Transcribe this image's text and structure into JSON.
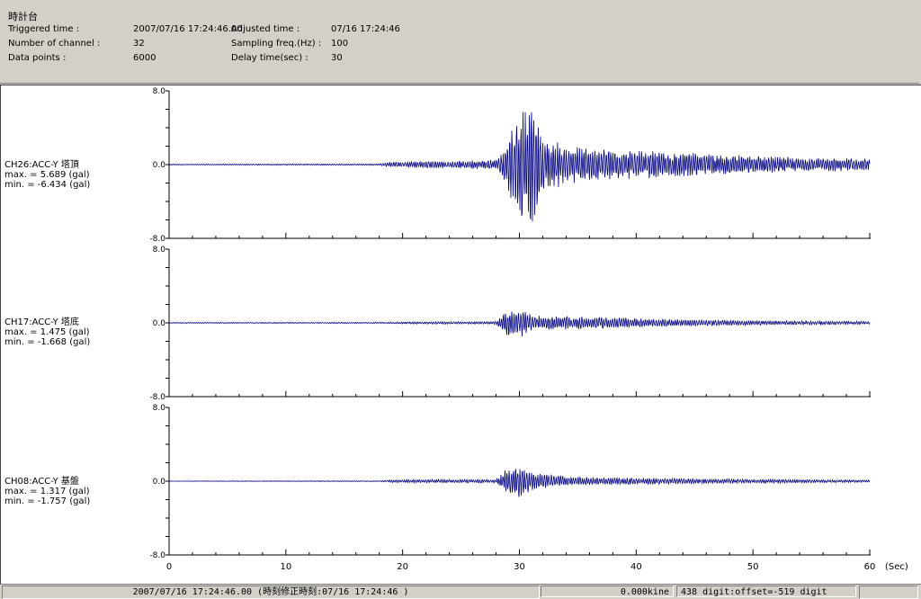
{
  "header": {
    "title": "時計台",
    "triggered_label": "Triggered time :",
    "triggered_value": "2007/07/16 17:24:46.00",
    "channels_label": "Number of channel :",
    "channels_value": "32",
    "datapoints_label": "Data points :",
    "datapoints_value": "6000",
    "adjusted_label": "Adjusted time :",
    "adjusted_value": "07/16 17:24:46",
    "sampling_label": "Sampling freq.(Hz) :",
    "sampling_value": "100",
    "delay_label": "Delay time(sec) :",
    "delay_value": "30"
  },
  "chart_data": {
    "type": "line",
    "x_unit": "(Sec)",
    "xlim": [
      0,
      60
    ],
    "x_ticks": [
      "0",
      "10",
      "20",
      "30",
      "40",
      "50",
      "60"
    ],
    "channels": [
      {
        "name": "CH26:ACC-Y 塔頂",
        "max_text": "max. = 5.689 (gal)",
        "min_text": "min. = -6.434 (gal)",
        "max": 5.689,
        "min": -6.434,
        "ylim": [
          -8.0,
          8.0
        ],
        "y_ticks": [
          "8.0",
          "0.0",
          "-8.0"
        ],
        "color": "#000080",
        "envelope": [
          [
            0,
            0.05
          ],
          [
            18,
            0.08
          ],
          [
            19,
            0.3
          ],
          [
            24,
            0.35
          ],
          [
            28,
            0.5
          ],
          [
            29,
            2.5
          ],
          [
            30,
            5.7
          ],
          [
            31,
            6.4
          ],
          [
            32,
            3.0
          ],
          [
            34,
            2.0
          ],
          [
            37,
            1.6
          ],
          [
            45,
            1.2
          ],
          [
            50,
            0.9
          ],
          [
            55,
            0.7
          ],
          [
            60,
            0.6
          ]
        ]
      },
      {
        "name": "CH17:ACC-Y 塔底",
        "max_text": "max. = 1.475 (gal)",
        "min_text": "min. = -1.668 (gal)",
        "max": 1.475,
        "min": -1.668,
        "ylim": [
          -8.0,
          8.0
        ],
        "y_ticks": [
          "8.0",
          "0.0",
          "-8.0"
        ],
        "color": "#000080",
        "envelope": [
          [
            0,
            0.05
          ],
          [
            18,
            0.06
          ],
          [
            20,
            0.1
          ],
          [
            28,
            0.15
          ],
          [
            29,
            1.5
          ],
          [
            30,
            1.6
          ],
          [
            31,
            0.9
          ],
          [
            33,
            0.7
          ],
          [
            37,
            0.6
          ],
          [
            42,
            0.4
          ],
          [
            50,
            0.25
          ],
          [
            60,
            0.15
          ]
        ]
      },
      {
        "name": "CH08:ACC-Y 基盤",
        "max_text": "max. = 1.317 (gal)",
        "min_text": "min. = -1.757 (gal)",
        "max": 1.317,
        "min": -1.757,
        "ylim": [
          -8.0,
          8.0
        ],
        "y_ticks": [
          "8.0",
          "0.0",
          "-8.0"
        ],
        "color": "#000080",
        "envelope": [
          [
            0,
            0.02
          ],
          [
            18,
            0.04
          ],
          [
            19,
            0.15
          ],
          [
            28,
            0.2
          ],
          [
            29,
            1.4
          ],
          [
            30,
            1.7
          ],
          [
            31,
            1.0
          ],
          [
            33,
            0.6
          ],
          [
            36,
            0.4
          ],
          [
            45,
            0.25
          ],
          [
            60,
            0.12
          ]
        ]
      }
    ]
  },
  "status": {
    "time": "2007/07/16 17:24:46.00 (時刻修正時刻:07/16 17:24:46 )",
    "kine": "0.000kine",
    "digit": "438 digit:offset=-519 digit"
  }
}
